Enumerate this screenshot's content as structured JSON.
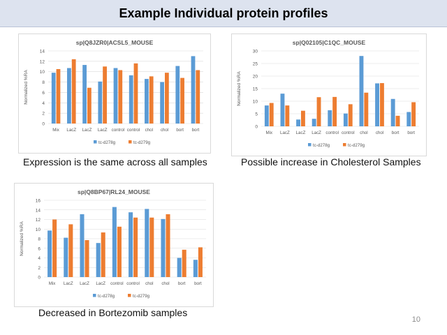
{
  "slide": {
    "title": "Example Individual protein profiles",
    "page_number": "10"
  },
  "captions": {
    "c1": "Expression is the same across all samples",
    "c2": "Possible increase in Cholesterol Samples",
    "c3": "Decreased in Bortezomib samples"
  },
  "colors": {
    "series1": "#5b9bd5",
    "series2": "#ed7d31",
    "grid": "#d9d9d9"
  },
  "chart_data": [
    {
      "type": "bar",
      "title": "sp|Q8JZR0|ACSL5_MOUSE",
      "ylabel": "Normalized %RA",
      "xlabel": "",
      "ylim": [
        0,
        14
      ],
      "yticks": [
        0,
        2,
        4,
        6,
        8,
        10,
        12,
        14
      ],
      "categories": [
        "Mix",
        "LacZ",
        "LacZ",
        "LacZ",
        "control",
        "control",
        "chol",
        "chol",
        "bort",
        "bort"
      ],
      "series": [
        {
          "name": "tc-d278g",
          "values": [
            9.8,
            10.7,
            11.3,
            8.1,
            10.7,
            9.3,
            8.6,
            8.0,
            11.1,
            13.0
          ]
        },
        {
          "name": "tc-d279g",
          "values": [
            10.5,
            12.4,
            6.9,
            11.0,
            10.3,
            11.6,
            9.1,
            9.8,
            8.8,
            10.3
          ]
        }
      ],
      "legend": "bottom",
      "grid": true
    },
    {
      "type": "bar",
      "title": "sp|Q02105|C1QC_MOUSE",
      "ylabel": "Normalized %RA",
      "xlabel": "",
      "ylim": [
        0,
        30
      ],
      "yticks": [
        0,
        5,
        10,
        15,
        20,
        25,
        30
      ],
      "categories": [
        "Mix",
        "LacZ",
        "LacZ",
        "LacZ",
        "control",
        "control",
        "chol",
        "chol",
        "bort",
        "bort"
      ],
      "series": [
        {
          "name": "tc-d278g",
          "values": [
            8.3,
            13.0,
            2.7,
            3.0,
            6.4,
            5.1,
            28.0,
            17.1,
            10.9,
            5.7
          ]
        },
        {
          "name": "tc-d279g",
          "values": [
            9.3,
            8.3,
            6.2,
            11.6,
            11.7,
            8.8,
            13.4,
            17.2,
            4.2,
            9.6
          ]
        }
      ],
      "legend": "bottom",
      "grid": true
    },
    {
      "type": "bar",
      "title": "sp|Q8BP67|RL24_MOUSE",
      "ylabel": "Normalized %RA",
      "xlabel": "",
      "ylim": [
        0,
        16
      ],
      "yticks": [
        0,
        2,
        4,
        6,
        8,
        10,
        12,
        14,
        16
      ],
      "categories": [
        "Mix",
        "LacZ",
        "LacZ",
        "LacZ",
        "control",
        "control",
        "chol",
        "chol",
        "bort",
        "bort"
      ],
      "series": [
        {
          "name": "tc-d278g",
          "values": [
            9.7,
            8.2,
            13.1,
            7.1,
            14.6,
            13.5,
            14.2,
            12.1,
            4.0,
            3.6
          ]
        },
        {
          "name": "tc-d279g",
          "values": [
            12.0,
            11.0,
            7.7,
            9.3,
            10.5,
            12.4,
            12.4,
            13.1,
            5.7,
            6.2
          ]
        }
      ],
      "legend": "bottom",
      "grid": true
    }
  ]
}
